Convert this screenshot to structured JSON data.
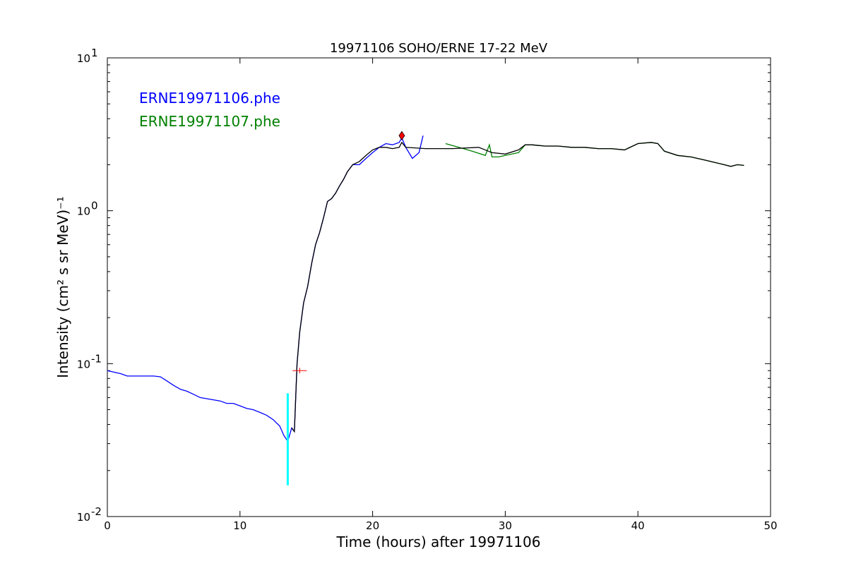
{
  "chart_data": {
    "type": "line",
    "title": "19971106 SOHO/ERNE 17-22 MeV",
    "xlabel": "Time (hours) after 19971106",
    "ylabel": "Intensity (cm² s sr MeV)⁻¹",
    "xlim": [
      0,
      50
    ],
    "ylim": [
      0.01,
      10
    ],
    "yscale": "log",
    "grid": false,
    "legend_position": "top-left",
    "x_ticks": [
      "0",
      "10",
      "20",
      "30",
      "40",
      "50"
    ],
    "y_ticks": [
      {
        "base": "10",
        "exp": "-2",
        "value": 0.01
      },
      {
        "base": "10",
        "exp": "-1",
        "value": 0.1
      },
      {
        "base": "10",
        "exp": "0",
        "value": 1
      },
      {
        "base": "10",
        "exp": "1",
        "value": 10
      }
    ],
    "series": [
      {
        "name": "ERNE19971106.phe",
        "color": "#0000ff",
        "x": [
          0,
          0.5,
          1,
          1.5,
          2,
          2.5,
          3,
          3.5,
          4,
          4.5,
          5,
          5.5,
          6,
          6.5,
          7,
          7.5,
          8,
          8.5,
          9,
          9.5,
          10,
          10.5,
          11,
          11.5,
          12,
          12.5,
          13,
          13.3,
          13.6,
          13.9,
          14.1,
          14.3,
          14.5,
          14.8,
          15.1,
          15.4,
          15.7,
          16,
          16.3,
          16.6,
          16.9,
          17.2,
          17.5,
          17.8,
          18.1,
          18.5,
          19,
          19.5,
          20,
          20.5,
          21,
          21.5,
          22,
          22.2,
          22.5,
          23,
          23.5,
          23.8
        ],
        "y": [
          0.09,
          0.088,
          0.086,
          0.083,
          0.083,
          0.083,
          0.083,
          0.083,
          0.082,
          0.077,
          0.072,
          0.068,
          0.066,
          0.063,
          0.06,
          0.059,
          0.058,
          0.057,
          0.055,
          0.055,
          0.053,
          0.051,
          0.05,
          0.048,
          0.046,
          0.043,
          0.039,
          0.034,
          0.031,
          0.038,
          0.036,
          0.1,
          0.16,
          0.25,
          0.32,
          0.45,
          0.6,
          0.72,
          0.9,
          1.15,
          1.2,
          1.3,
          1.45,
          1.6,
          1.8,
          2.0,
          2.0,
          2.2,
          2.4,
          2.6,
          2.75,
          2.7,
          2.8,
          3.0,
          2.6,
          2.2,
          2.4,
          3.1
        ]
      },
      {
        "name": "ERNE19971107.phe",
        "color": "#008000",
        "x": [
          25.5,
          26.5,
          27.5,
          28.5,
          28.8,
          29,
          29.5,
          30,
          30.5,
          31,
          31.5,
          32,
          33,
          34,
          35,
          36,
          37,
          38,
          39,
          40,
          41,
          41.5,
          42,
          43,
          44,
          45,
          45.5,
          46,
          46.5,
          47,
          47.5,
          48
        ],
        "y": [
          2.75,
          2.6,
          2.45,
          2.3,
          2.7,
          2.25,
          2.25,
          2.3,
          2.35,
          2.4,
          2.7,
          2.7,
          2.65,
          2.65,
          2.6,
          2.6,
          2.55,
          2.55,
          2.5,
          2.75,
          2.8,
          2.75,
          2.45,
          2.3,
          2.25,
          2.15,
          2.1,
          2.05,
          2.0,
          1.95,
          2.0,
          1.98
        ]
      },
      {
        "name": "",
        "color": "#000000",
        "x": [
          13.9,
          14.1,
          14.3,
          14.5,
          14.8,
          15.1,
          15.4,
          15.7,
          16,
          16.3,
          16.6,
          16.9,
          17.2,
          17.5,
          17.8,
          18.1,
          18.5,
          19,
          19.5,
          20,
          20.5,
          21,
          21.5,
          22,
          22.2,
          22.5,
          24,
          26,
          28,
          29,
          30,
          31,
          31.5,
          32,
          33,
          34,
          35,
          36,
          37,
          38,
          39,
          40,
          41,
          41.5,
          42,
          43,
          44,
          45,
          45.5,
          46,
          46.5,
          47,
          47.5,
          48
        ],
        "y": [
          0.038,
          0.036,
          0.1,
          0.16,
          0.25,
          0.32,
          0.45,
          0.6,
          0.72,
          0.9,
          1.15,
          1.2,
          1.3,
          1.45,
          1.6,
          1.8,
          2.0,
          2.1,
          2.3,
          2.5,
          2.6,
          2.6,
          2.55,
          2.6,
          2.8,
          2.6,
          2.55,
          2.55,
          2.6,
          2.4,
          2.35,
          2.5,
          2.7,
          2.7,
          2.65,
          2.65,
          2.6,
          2.6,
          2.55,
          2.55,
          2.5,
          2.75,
          2.8,
          2.75,
          2.45,
          2.3,
          2.25,
          2.15,
          2.1,
          2.05,
          2.0,
          1.95,
          2.0,
          1.98
        ]
      }
    ],
    "annotations": [
      {
        "kind": "vertical-bar",
        "color": "#00ffff",
        "x": 13.6,
        "y": [
          0.016,
          0.064
        ]
      },
      {
        "kind": "plus-marker",
        "color": "#ff0000",
        "x": 14.5,
        "y": 0.09
      },
      {
        "kind": "diamond-marker",
        "color": "#ff0000",
        "x": 22.2,
        "y": 3.1
      }
    ]
  }
}
